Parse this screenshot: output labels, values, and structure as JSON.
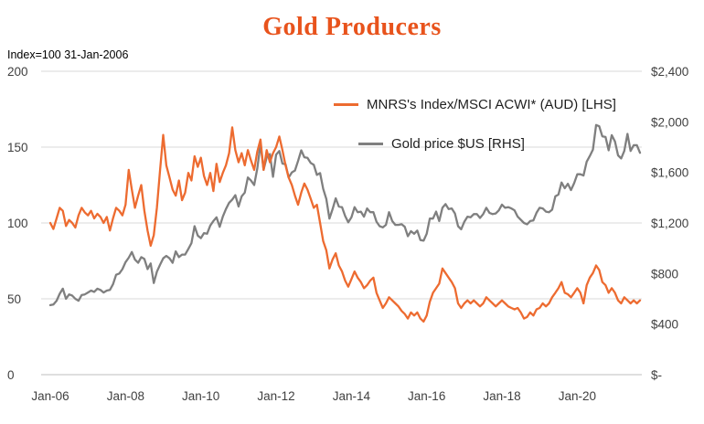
{
  "chart_data": {
    "type": "line",
    "title": "Gold Producers",
    "subtitle": "Index=100 31-Jan-2006",
    "grid": true,
    "legend_position": "inside-top-right",
    "x_tick_labels": [
      "Jan-06",
      "Jan-08",
      "Jan-10",
      "Jan-12",
      "Jan-14",
      "Jan-16",
      "Jan-18",
      "Jan-20"
    ],
    "x_tick_months": [
      0,
      24,
      48,
      72,
      96,
      120,
      144,
      168
    ],
    "x_max_month": 188,
    "left_axis": {
      "range": [
        0,
        200
      ],
      "ticks": [
        0,
        50,
        100,
        150,
        200
      ],
      "labels": [
        "0",
        "50",
        "100",
        "150",
        "200"
      ]
    },
    "right_axis": {
      "range": [
        0,
        2400
      ],
      "ticks": [
        0,
        400,
        800,
        1200,
        1600,
        2000,
        2400
      ],
      "labels": [
        "$-",
        "$400",
        "$800",
        "$1,200",
        "$1,600",
        "$2,000",
        "$2,400"
      ]
    },
    "colors": {
      "index_line": "#ED6B30",
      "gold_line": "#7F7F7F",
      "gridline": "#D9D9D9",
      "axis_text": "#404040",
      "title": "#E8531C"
    },
    "series": [
      {
        "name": "MNRS's Index/MSCI ACWI* (AUD) [LHS]",
        "axis": "left",
        "color": "#ED6B30",
        "start": "Jan-2006",
        "interval": "monthly",
        "values": [
          100,
          96,
          103,
          110,
          108,
          98,
          102,
          100,
          97,
          105,
          110,
          107,
          105,
          108,
          103,
          106,
          104,
          100,
          104,
          95,
          103,
          110,
          108,
          105,
          112,
          135,
          122,
          110,
          118,
          125,
          108,
          95,
          85,
          92,
          110,
          135,
          158,
          138,
          130,
          122,
          118,
          128,
          115,
          120,
          133,
          128,
          144,
          137,
          143,
          131,
          125,
          133,
          121,
          139,
          127,
          133,
          138,
          146,
          163,
          148,
          140,
          146,
          138,
          148,
          141,
          135,
          147,
          155,
          135,
          148,
          140,
          146,
          150,
          157,
          148,
          138,
          130,
          125,
          118,
          112,
          120,
          126,
          122,
          116,
          110,
          112,
          100,
          88,
          82,
          70,
          76,
          80,
          72,
          68,
          62,
          58,
          63,
          68,
          64,
          61,
          57,
          59,
          62,
          64,
          54,
          49,
          44,
          47,
          51,
          49,
          47,
          45,
          42,
          40,
          37,
          41,
          39,
          41,
          37,
          35,
          39,
          48,
          54,
          57,
          60,
          70,
          67,
          64,
          61,
          57,
          47,
          44,
          47,
          49,
          47,
          49,
          47,
          45,
          47,
          51,
          49,
          47,
          45,
          47,
          49,
          47,
          45,
          44,
          43,
          44,
          41,
          37,
          38,
          41,
          39,
          43,
          44,
          47,
          45,
          47,
          51,
          54,
          57,
          61,
          54,
          53,
          51,
          54,
          57,
          54,
          47,
          59,
          64,
          67,
          72,
          69,
          61,
          59,
          54,
          57,
          54,
          49,
          47,
          51,
          49,
          47,
          49,
          47,
          49
        ]
      },
      {
        "name": "Gold price $US [RHS]",
        "axis": "right",
        "color": "#7F7F7F",
        "start": "Jan-2006",
        "interval": "monthly",
        "values": [
          550,
          555,
          585,
          640,
          680,
          600,
          635,
          625,
          600,
          585,
          630,
          635,
          650,
          665,
          655,
          680,
          670,
          650,
          665,
          670,
          715,
          790,
          800,
          835,
          890,
          925,
          970,
          910,
          885,
          930,
          915,
          835,
          880,
          725,
          815,
          870,
          920,
          940,
          920,
          885,
          975,
          930,
          950,
          950,
          995,
          1040,
          1175,
          1100,
          1080,
          1120,
          1115,
          1180,
          1215,
          1245,
          1170,
          1250,
          1310,
          1360,
          1385,
          1420,
          1330,
          1410,
          1440,
          1560,
          1535,
          1500,
          1630,
          1825,
          1620,
          1720,
          1745,
          1565,
          1740,
          1770,
          1670,
          1665,
          1560,
          1600,
          1615,
          1690,
          1775,
          1720,
          1715,
          1675,
          1660,
          1580,
          1595,
          1470,
          1390,
          1235,
          1310,
          1395,
          1330,
          1325,
          1255,
          1205,
          1245,
          1325,
          1285,
          1290,
          1250,
          1315,
          1285,
          1285,
          1210,
          1175,
          1165,
          1185,
          1285,
          1215,
          1185,
          1185,
          1190,
          1170,
          1095,
          1135,
          1115,
          1140,
          1065,
          1060,
          1115,
          1235,
          1235,
          1290,
          1215,
          1320,
          1350,
          1310,
          1315,
          1275,
          1175,
          1150,
          1210,
          1250,
          1245,
          1270,
          1270,
          1240,
          1270,
          1320,
          1280,
          1270,
          1275,
          1300,
          1345,
          1320,
          1325,
          1315,
          1300,
          1250,
          1225,
          1200,
          1190,
          1215,
          1220,
          1280,
          1320,
          1315,
          1290,
          1285,
          1305,
          1410,
          1425,
          1520,
          1475,
          1510,
          1460,
          1515,
          1585,
          1585,
          1575,
          1685,
          1730,
          1780,
          1975,
          1965,
          1885,
          1880,
          1775,
          1895,
          1845,
          1735,
          1710,
          1770,
          1905,
          1770,
          1815,
          1815,
          1755
        ]
      }
    ]
  }
}
